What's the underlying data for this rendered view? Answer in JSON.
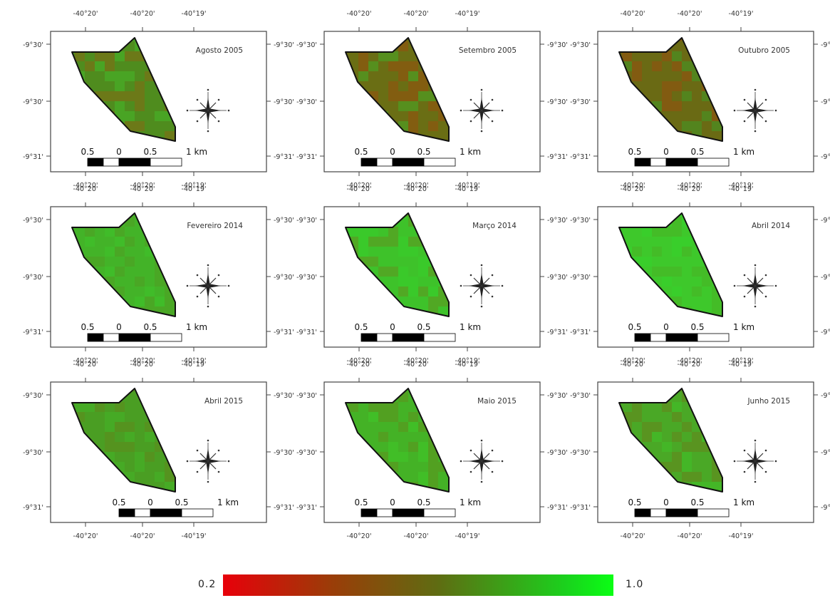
{
  "panels": [
    {
      "title": "Agosto 2005",
      "fill": "#4f8c1e",
      "shade": "#a2550f",
      "shadeOpacity": 0.35,
      "hilite": "#42c22c"
    },
    {
      "title": "Setembro 2005",
      "fill": "#6a6e14",
      "shade": "#a04a0c",
      "shadeOpacity": 0.45,
      "hilite": "#3fb82a"
    },
    {
      "title": "Outubro 2005",
      "fill": "#6a6a14",
      "shade": "#a8460c",
      "shadeOpacity": 0.4,
      "hilite": "#37a52a"
    },
    {
      "title": "Fevereiro 2014",
      "fill": "#43b328",
      "shade": "#6b7a17",
      "shadeOpacity": 0.2,
      "hilite": "#3fc82b"
    },
    {
      "title": "Março 2014",
      "fill": "#3ec22a",
      "shade": "#8a5a12",
      "shadeOpacity": 0.25,
      "hilite": "#36d22b"
    },
    {
      "title": "Abril 2014",
      "fill": "#3ec82b",
      "shade": "#5e8a19",
      "shadeOpacity": 0.2,
      "hilite": "#32d42c"
    },
    {
      "title": "Abril 2015",
      "fill": "#4a9e23",
      "shade": "#6f7a16",
      "shadeOpacity": 0.3,
      "hilite": "#42b828"
    },
    {
      "title": "Maio 2015",
      "fill": "#44b226",
      "shade": "#7a6a14",
      "shadeOpacity": 0.25,
      "hilite": "#3fcb2a"
    },
    {
      "title": "Junho 2015",
      "fill": "#4aa826",
      "shade": "#7d6614",
      "shadeOpacity": 0.3,
      "hilite": "#3ec82a"
    }
  ],
  "axes": {
    "top_ticks": [
      "-40°20'",
      "-40°20'",
      "-40°19'"
    ],
    "bottom_ticks": [
      "-40°20'",
      "-40°20'",
      "-40°19'"
    ],
    "left_ticks": [
      "-9°30'",
      "-9°30'",
      "-9°31'"
    ],
    "right_ticks": [
      "-9°30'",
      "-9°30'",
      "-9°31'"
    ]
  },
  "scale_bar": {
    "labels": [
      "0.5",
      "0",
      "0.5",
      "1 km"
    ]
  },
  "colorbar": {
    "min_label": "0.2",
    "max_label": "1.0",
    "colors": [
      "#e8000a",
      "#9a3d08",
      "#5f6c12",
      "#1ad21d",
      "#0aff14"
    ]
  }
}
